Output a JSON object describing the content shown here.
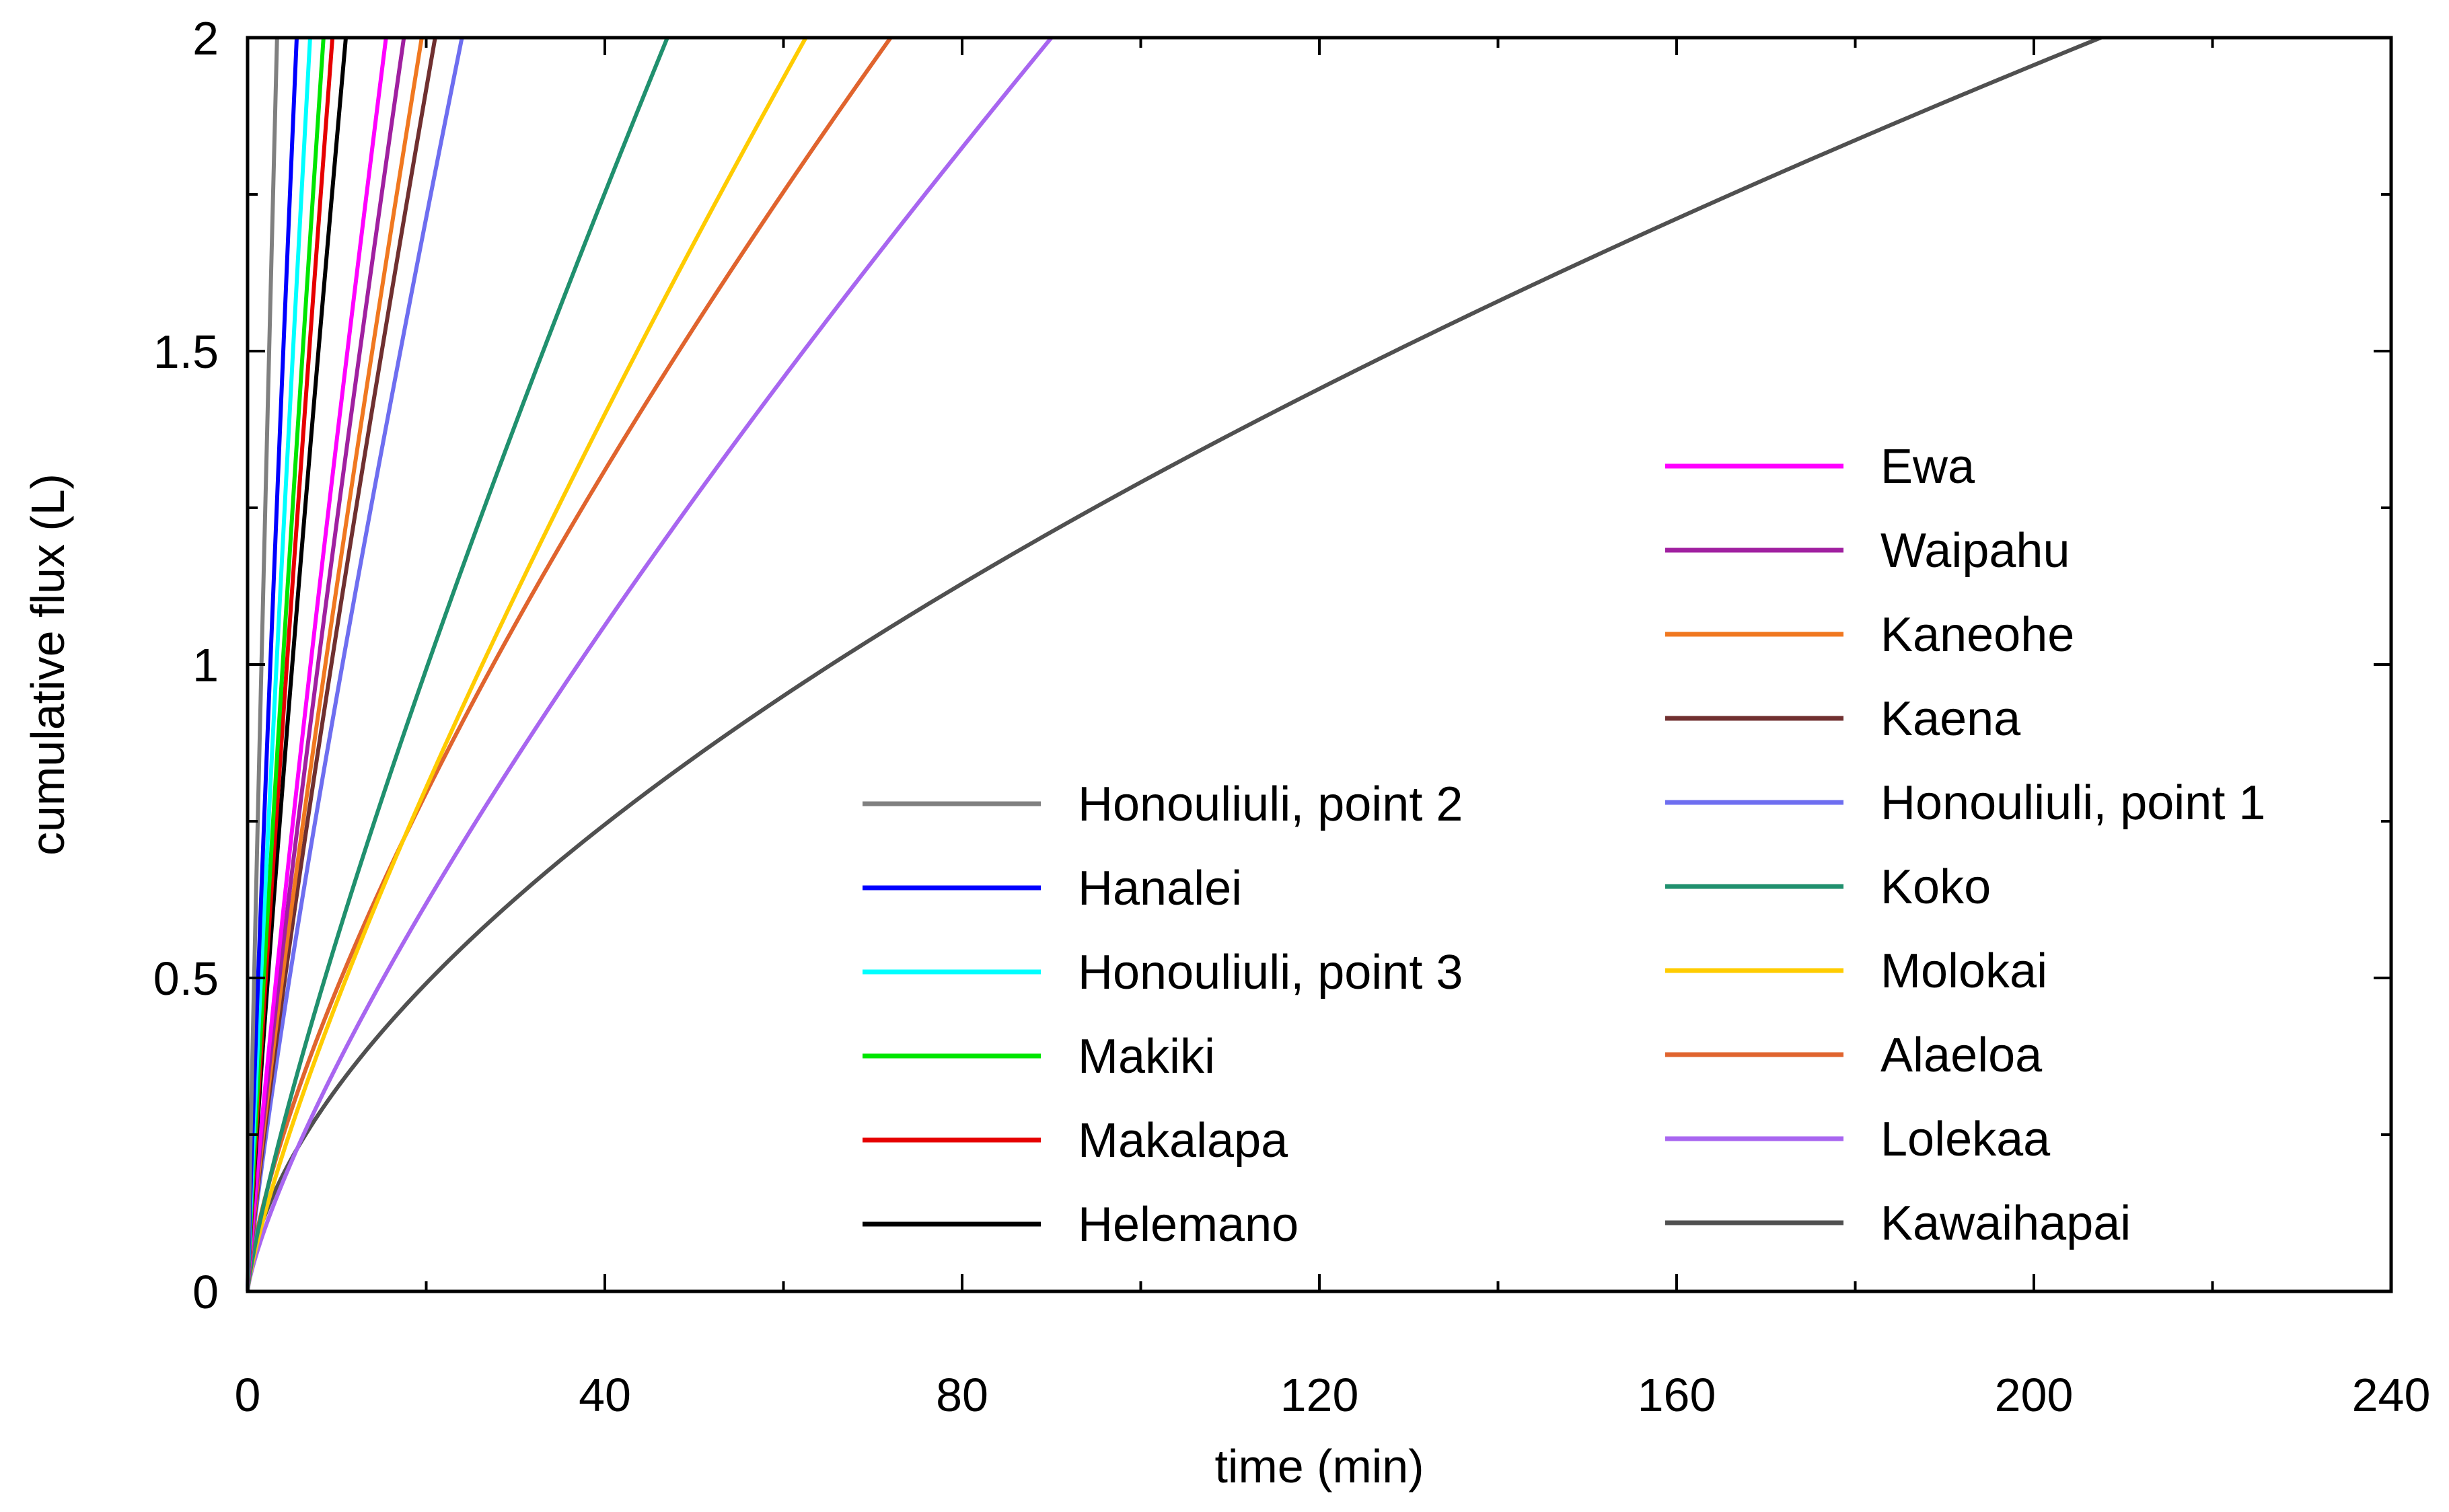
{
  "chart_data": {
    "type": "line",
    "title": "",
    "xlabel": "time (min)",
    "ylabel": "cumulative flux (L)",
    "xlim": [
      0,
      240
    ],
    "ylim": [
      0,
      2
    ],
    "xticks": [
      0,
      40,
      80,
      120,
      160,
      200,
      240
    ],
    "xtick_labels": [
      "0",
      "40",
      "80",
      "120",
      "160",
      "200",
      "240"
    ],
    "xminor": [
      20,
      60,
      100,
      140,
      180,
      220
    ],
    "yticks": [
      0,
      0.5,
      1,
      1.5,
      2
    ],
    "ytick_labels": [
      "0",
      "0.5",
      "1",
      "1.5",
      "2"
    ],
    "yminor": [
      0.25,
      0.75,
      1.25,
      1.75
    ],
    "grid": false,
    "legend_position": "bottom-right, two columns",
    "series": [
      {
        "name": "Honouliuli, point 2",
        "color": "#808080",
        "t_end": 3.3,
        "n": 0.92
      },
      {
        "name": "Hanalei",
        "color": "#0000FF",
        "t_end": 5.5,
        "n": 0.9
      },
      {
        "name": "Honouliuli, point 3",
        "color": "#00FFFF",
        "t_end": 7.0,
        "n": 0.9
      },
      {
        "name": "Makiki",
        "color": "#00E600",
        "t_end": 8.5,
        "n": 0.9
      },
      {
        "name": "Makalapa",
        "color": "#E60000",
        "t_end": 9.5,
        "n": 0.9
      },
      {
        "name": "Helemano",
        "color": "#000000",
        "t_end": 11.0,
        "n": 0.88
      },
      {
        "name": "Ewa",
        "color": "#FF00FF",
        "t_end": 15.5,
        "n": 0.88
      },
      {
        "name": "Waipahu",
        "color": "#A020A0",
        "t_end": 17.5,
        "n": 0.87
      },
      {
        "name": "Kaneohe",
        "color": "#F07820",
        "t_end": 19.5,
        "n": 0.86
      },
      {
        "name": "Kaena",
        "color": "#703030",
        "t_end": 21.0,
        "n": 0.86
      },
      {
        "name": "Honouliuli, point 1",
        "color": "#6E6EF0",
        "t_end": 24.0,
        "n": 0.85
      },
      {
        "name": "Koko",
        "color": "#20906E",
        "t_end": 47.0,
        "n": 0.82
      },
      {
        "name": "Molokai",
        "color": "#FFCC00",
        "t_end": 62.5,
        "n": 0.8
      },
      {
        "name": "Alaeloa",
        "color": "#E0642E",
        "t_end": 72.0,
        "n": 0.72
      },
      {
        "name": "Lolekaa",
        "color": "#A866F0",
        "t_end": 90.0,
        "n": 0.78
      },
      {
        "name": "Kawaihapai",
        "color": "#505050",
        "t_end": 207.5,
        "n": 0.6
      }
    ],
    "legend": {
      "left": [
        "Honouliuli, point 2",
        "Hanalei",
        "Honouliuli, point 3",
        "Makiki",
        "Makalapa",
        "Helemano"
      ],
      "right": [
        "Ewa",
        "Waipahu",
        "Kaneohe",
        "Kaena",
        "Honouliuli, point 1",
        "Koko",
        "Molokai",
        "Alaeloa",
        "Lolekaa",
        "Kawaihapai"
      ]
    }
  }
}
